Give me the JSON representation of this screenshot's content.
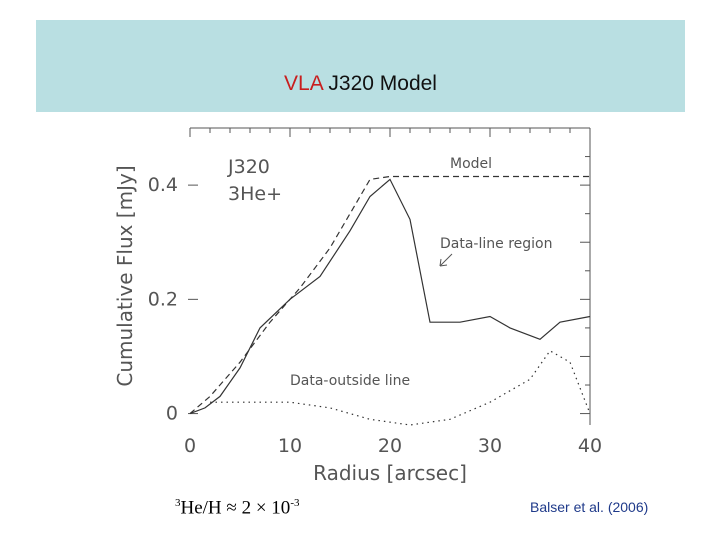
{
  "slide": {
    "title_accent": "VLA",
    "title_rest": " J320 Model",
    "formula": {
      "pre": "3",
      "main": "He/H ≈ 2 × 10",
      "exp": "-3"
    },
    "citation": "Balser et al. (2006)",
    "colors": {
      "title_bar": "#b9dfe2",
      "accent": "#c81e1e",
      "citation": "#1f3a8a"
    }
  },
  "chart_data": {
    "type": "line",
    "xlabel": "Radius [arcsec]",
    "ylabel": "Cumulative Flux [mJy]",
    "xlim": [
      0,
      40
    ],
    "ylim": [
      -0.02,
      0.5
    ],
    "xticks": [
      0,
      10,
      20,
      30,
      40
    ],
    "yticks": [
      0,
      0.2,
      0.4
    ],
    "ytick_labels": [
      "0",
      "0.2",
      "0.4"
    ],
    "grid": false,
    "source_lines": [
      "J320",
      "3He+"
    ],
    "series": [
      {
        "name": "Model",
        "style": "dashed",
        "x": [
          0,
          2,
          5,
          8,
          11,
          14,
          16,
          18,
          20,
          25,
          30,
          35,
          40
        ],
        "y": [
          0,
          0.03,
          0.09,
          0.16,
          0.22,
          0.29,
          0.35,
          0.41,
          0.415,
          0.415,
          0.415,
          0.415,
          0.415
        ]
      },
      {
        "name": "Data-line region",
        "style": "solid",
        "x": [
          0,
          1.5,
          3,
          5,
          7,
          10,
          13,
          16,
          18,
          20,
          22,
          24,
          27,
          30,
          32,
          35,
          37,
          40
        ],
        "y": [
          0,
          0.01,
          0.03,
          0.08,
          0.15,
          0.2,
          0.24,
          0.32,
          0.38,
          0.41,
          0.34,
          0.16,
          0.16,
          0.17,
          0.15,
          0.13,
          0.16,
          0.17
        ]
      },
      {
        "name": "Data-outside line",
        "style": "dotted",
        "x": [
          2,
          6,
          10,
          14,
          18,
          22,
          26,
          30,
          34,
          36,
          38,
          40
        ],
        "y": [
          0.02,
          0.02,
          0.02,
          0.01,
          -0.01,
          -0.02,
          -0.01,
          0.02,
          0.06,
          0.11,
          0.09,
          0.0
        ]
      }
    ],
    "annotations": [
      {
        "text": "Model",
        "x": 26,
        "y": 0.43
      },
      {
        "text": "Data-line region",
        "x": 25,
        "y": 0.29
      },
      {
        "text": "Data-outside line",
        "x": 10,
        "y": 0.05
      }
    ]
  }
}
